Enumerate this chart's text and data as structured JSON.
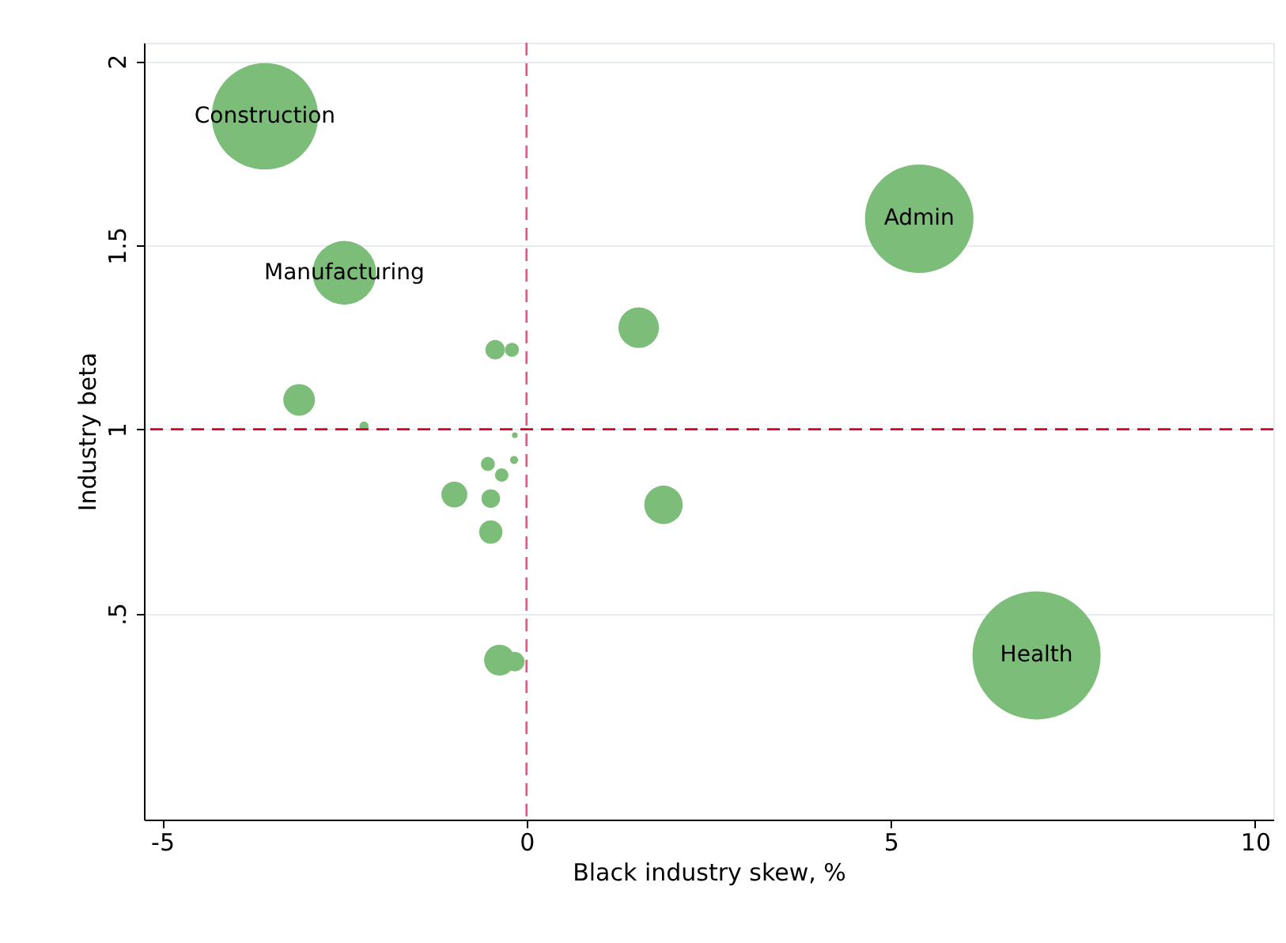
{
  "chart_data": {
    "type": "bubble",
    "xlabel": "Black industry skew, %",
    "ylabel": "Industry beta",
    "x": [
      -3.59,
      -2.5,
      5.39,
      7.0,
      1.54,
      1.88,
      -3.12,
      -2.23,
      -0.43,
      -0.2,
      -0.16,
      -0.53,
      -0.17,
      -0.34,
      -0.99,
      -0.49,
      -0.49,
      -0.37,
      -0.16
    ],
    "values": [
      1.85,
      1.425,
      1.572,
      0.386,
      1.276,
      0.795,
      1.08,
      1.009,
      1.216,
      1.216,
      0.984,
      0.906,
      0.917,
      0.876,
      0.823,
      0.812,
      0.721,
      0.373,
      0.369
    ],
    "sizes": [
      0.69,
      0.247,
      0.717,
      1,
      0.1,
      0.09,
      0.061,
      0.005,
      0.023,
      0.012,
      0.002,
      0.012,
      0.004,
      0.011,
      0.041,
      0.021,
      0.033,
      0.058,
      0.023
    ],
    "color": "#7dbd7a",
    "xlim": [
      -5.25,
      10.25
    ],
    "ylim": [
      -0.06,
      2.05
    ],
    "xticks": [
      -5,
      0,
      5,
      10
    ],
    "yticks": [
      {
        "value": 0.5,
        "label": ".5"
      },
      1,
      1.5,
      2
    ],
    "grid": "y",
    "ref_lines": [
      {
        "axis": "x",
        "value": 0,
        "color": "#d6607f",
        "line_style": "dashed"
      },
      {
        "axis": "y",
        "value": 1,
        "color": "#d6002f",
        "line_style": "dashed"
      }
    ],
    "annotations": [
      {
        "text": "Construction",
        "x": -3.59,
        "y": 1.85
      },
      {
        "text": "Manufacturing",
        "x": -2.5,
        "y": 1.425
      },
      {
        "text": "Admin",
        "x": 5.39,
        "y": 1.572
      },
      {
        "text": "Health",
        "x": 7.0,
        "y": 0.386
      }
    ]
  }
}
